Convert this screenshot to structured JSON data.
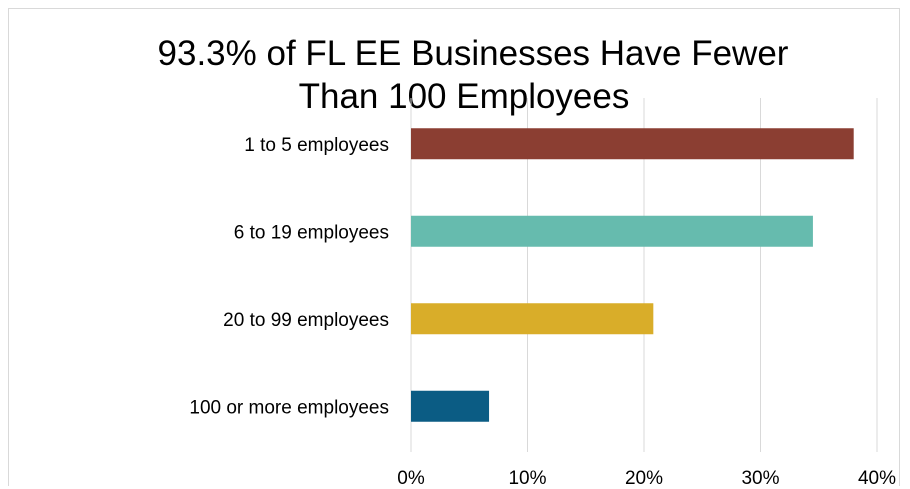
{
  "chart_data": {
    "type": "bar",
    "orientation": "horizontal",
    "title_lines": [
      "93.3% of FL EE Businesses Have Fewer",
      "Than 100 Employees"
    ],
    "categories": [
      "1 to 5 employees",
      "6 to 19 employees",
      "20 to 99 employees",
      "100 or more employees"
    ],
    "values": [
      38.0,
      34.5,
      20.8,
      6.7
    ],
    "colors": [
      "#8b3e32",
      "#66bbae",
      "#d9ad29",
      "#0b5c84"
    ],
    "xlim": [
      0,
      40
    ],
    "xticks": [
      0,
      10,
      20,
      30,
      40
    ],
    "xtick_labels": [
      "0%",
      "10%",
      "20%",
      "30%",
      "40%"
    ],
    "grid": "vertical",
    "legend": "none"
  }
}
